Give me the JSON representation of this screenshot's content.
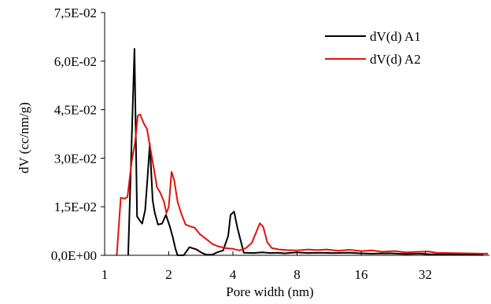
{
  "chart_data": {
    "type": "line",
    "title": "",
    "xlabel": "Pore width (nm)",
    "ylabel": "dV (cc/nm/g)",
    "x_scale": "log2",
    "xlim": [
      1,
      64
    ],
    "ylim": [
      0,
      0.075
    ],
    "x_ticks": [
      1,
      2,
      4,
      8,
      16,
      32
    ],
    "x_tick_labels": [
      "1",
      "2",
      "4",
      "8",
      "16",
      "32"
    ],
    "y_ticks": [
      0,
      0.015,
      0.03,
      0.045,
      0.06,
      0.075
    ],
    "y_tick_labels": [
      "0,0E+00",
      "1,5E-02",
      "3,0E-02",
      "4,5E-02",
      "6,0E-02",
      "7,5E-02"
    ],
    "grid": false,
    "legend_position": "top-right",
    "series": [
      {
        "name": "dV(d) A1",
        "color": "#000000",
        "points": [
          [
            1.29,
            0.0
          ],
          [
            1.38,
            0.0638
          ],
          [
            1.42,
            0.012
          ],
          [
            1.47,
            0.0105
          ],
          [
            1.5,
            0.0098
          ],
          [
            1.55,
            0.014
          ],
          [
            1.59,
            0.024
          ],
          [
            1.63,
            0.0345
          ],
          [
            1.68,
            0.017
          ],
          [
            1.72,
            0.013
          ],
          [
            1.78,
            0.0095
          ],
          [
            1.86,
            0.0098
          ],
          [
            1.94,
            0.0125
          ],
          [
            2.02,
            0.009
          ],
          [
            2.09,
            0.0055
          ],
          [
            2.15,
            0.002
          ],
          [
            2.2,
            0.0
          ],
          [
            2.35,
            0.0
          ],
          [
            2.5,
            0.0025
          ],
          [
            2.7,
            0.0018
          ],
          [
            2.85,
            0.0008
          ],
          [
            3.0,
            0.0002
          ],
          [
            3.2,
            0.0002
          ],
          [
            3.4,
            0.001
          ],
          [
            3.6,
            0.0015
          ],
          [
            3.8,
            0.006
          ],
          [
            3.9,
            0.0125
          ],
          [
            4.05,
            0.0135
          ],
          [
            4.2,
            0.0085
          ],
          [
            4.35,
            0.0045
          ],
          [
            4.5,
            0.0008
          ],
          [
            5.0,
            0.0007
          ],
          [
            5.5,
            0.0009
          ],
          [
            6.0,
            0.0007
          ],
          [
            6.5,
            0.0008
          ],
          [
            7.0,
            0.0006
          ],
          [
            8.0,
            0.0009
          ],
          [
            9.0,
            0.0007
          ],
          [
            10.0,
            0.0008
          ],
          [
            12.0,
            0.0007
          ],
          [
            14.0,
            0.0008
          ],
          [
            16.0,
            0.0006
          ],
          [
            18.0,
            0.0005
          ],
          [
            22.0,
            0.0006
          ],
          [
            26.0,
            0.0004
          ],
          [
            30.0,
            0.0005
          ],
          [
            34.0,
            0.0003
          ],
          [
            40.0,
            0.0003
          ],
          [
            48.0,
            0.0002
          ],
          [
            60.0,
            0.0002
          ]
        ]
      },
      {
        "name": "dV(d) A2",
        "color": "#e3120b",
        "points": [
          [
            1.14,
            0.0
          ],
          [
            1.19,
            0.0178
          ],
          [
            1.24,
            0.0175
          ],
          [
            1.28,
            0.018
          ],
          [
            1.34,
            0.029
          ],
          [
            1.39,
            0.035
          ],
          [
            1.43,
            0.0432
          ],
          [
            1.47,
            0.0435
          ],
          [
            1.52,
            0.041
          ],
          [
            1.58,
            0.039
          ],
          [
            1.63,
            0.034
          ],
          [
            1.7,
            0.027
          ],
          [
            1.76,
            0.021
          ],
          [
            1.82,
            0.0195
          ],
          [
            1.9,
            0.0165
          ],
          [
            1.95,
            0.013
          ],
          [
            2.0,
            0.015
          ],
          [
            2.06,
            0.0258
          ],
          [
            2.12,
            0.0232
          ],
          [
            2.2,
            0.0165
          ],
          [
            2.3,
            0.0125
          ],
          [
            2.4,
            0.0095
          ],
          [
            2.55,
            0.0088
          ],
          [
            2.65,
            0.0085
          ],
          [
            2.8,
            0.0065
          ],
          [
            3.0,
            0.005
          ],
          [
            3.2,
            0.0035
          ],
          [
            3.4,
            0.0028
          ],
          [
            3.7,
            0.0022
          ],
          [
            4.0,
            0.002
          ],
          [
            4.3,
            0.0015
          ],
          [
            4.6,
            0.0022
          ],
          [
            4.9,
            0.0038
          ],
          [
            5.1,
            0.0065
          ],
          [
            5.35,
            0.0099
          ],
          [
            5.55,
            0.0088
          ],
          [
            5.8,
            0.004
          ],
          [
            6.1,
            0.0022
          ],
          [
            6.6,
            0.0018
          ],
          [
            7.2,
            0.0016
          ],
          [
            8.0,
            0.0015
          ],
          [
            9.0,
            0.0018
          ],
          [
            10.0,
            0.0016
          ],
          [
            11.0,
            0.0018
          ],
          [
            12.5,
            0.0014
          ],
          [
            14.0,
            0.0017
          ],
          [
            16.0,
            0.0013
          ],
          [
            18.0,
            0.0015
          ],
          [
            20.0,
            0.0011
          ],
          [
            23.0,
            0.0013
          ],
          [
            26.0,
            0.0009
          ],
          [
            30.0,
            0.0011
          ],
          [
            33.0,
            0.0012
          ],
          [
            36.0,
            0.0008
          ],
          [
            42.0,
            0.0007
          ],
          [
            50.0,
            0.0006
          ],
          [
            58.0,
            0.0005
          ],
          [
            63.0,
            0.0005
          ]
        ]
      }
    ]
  }
}
